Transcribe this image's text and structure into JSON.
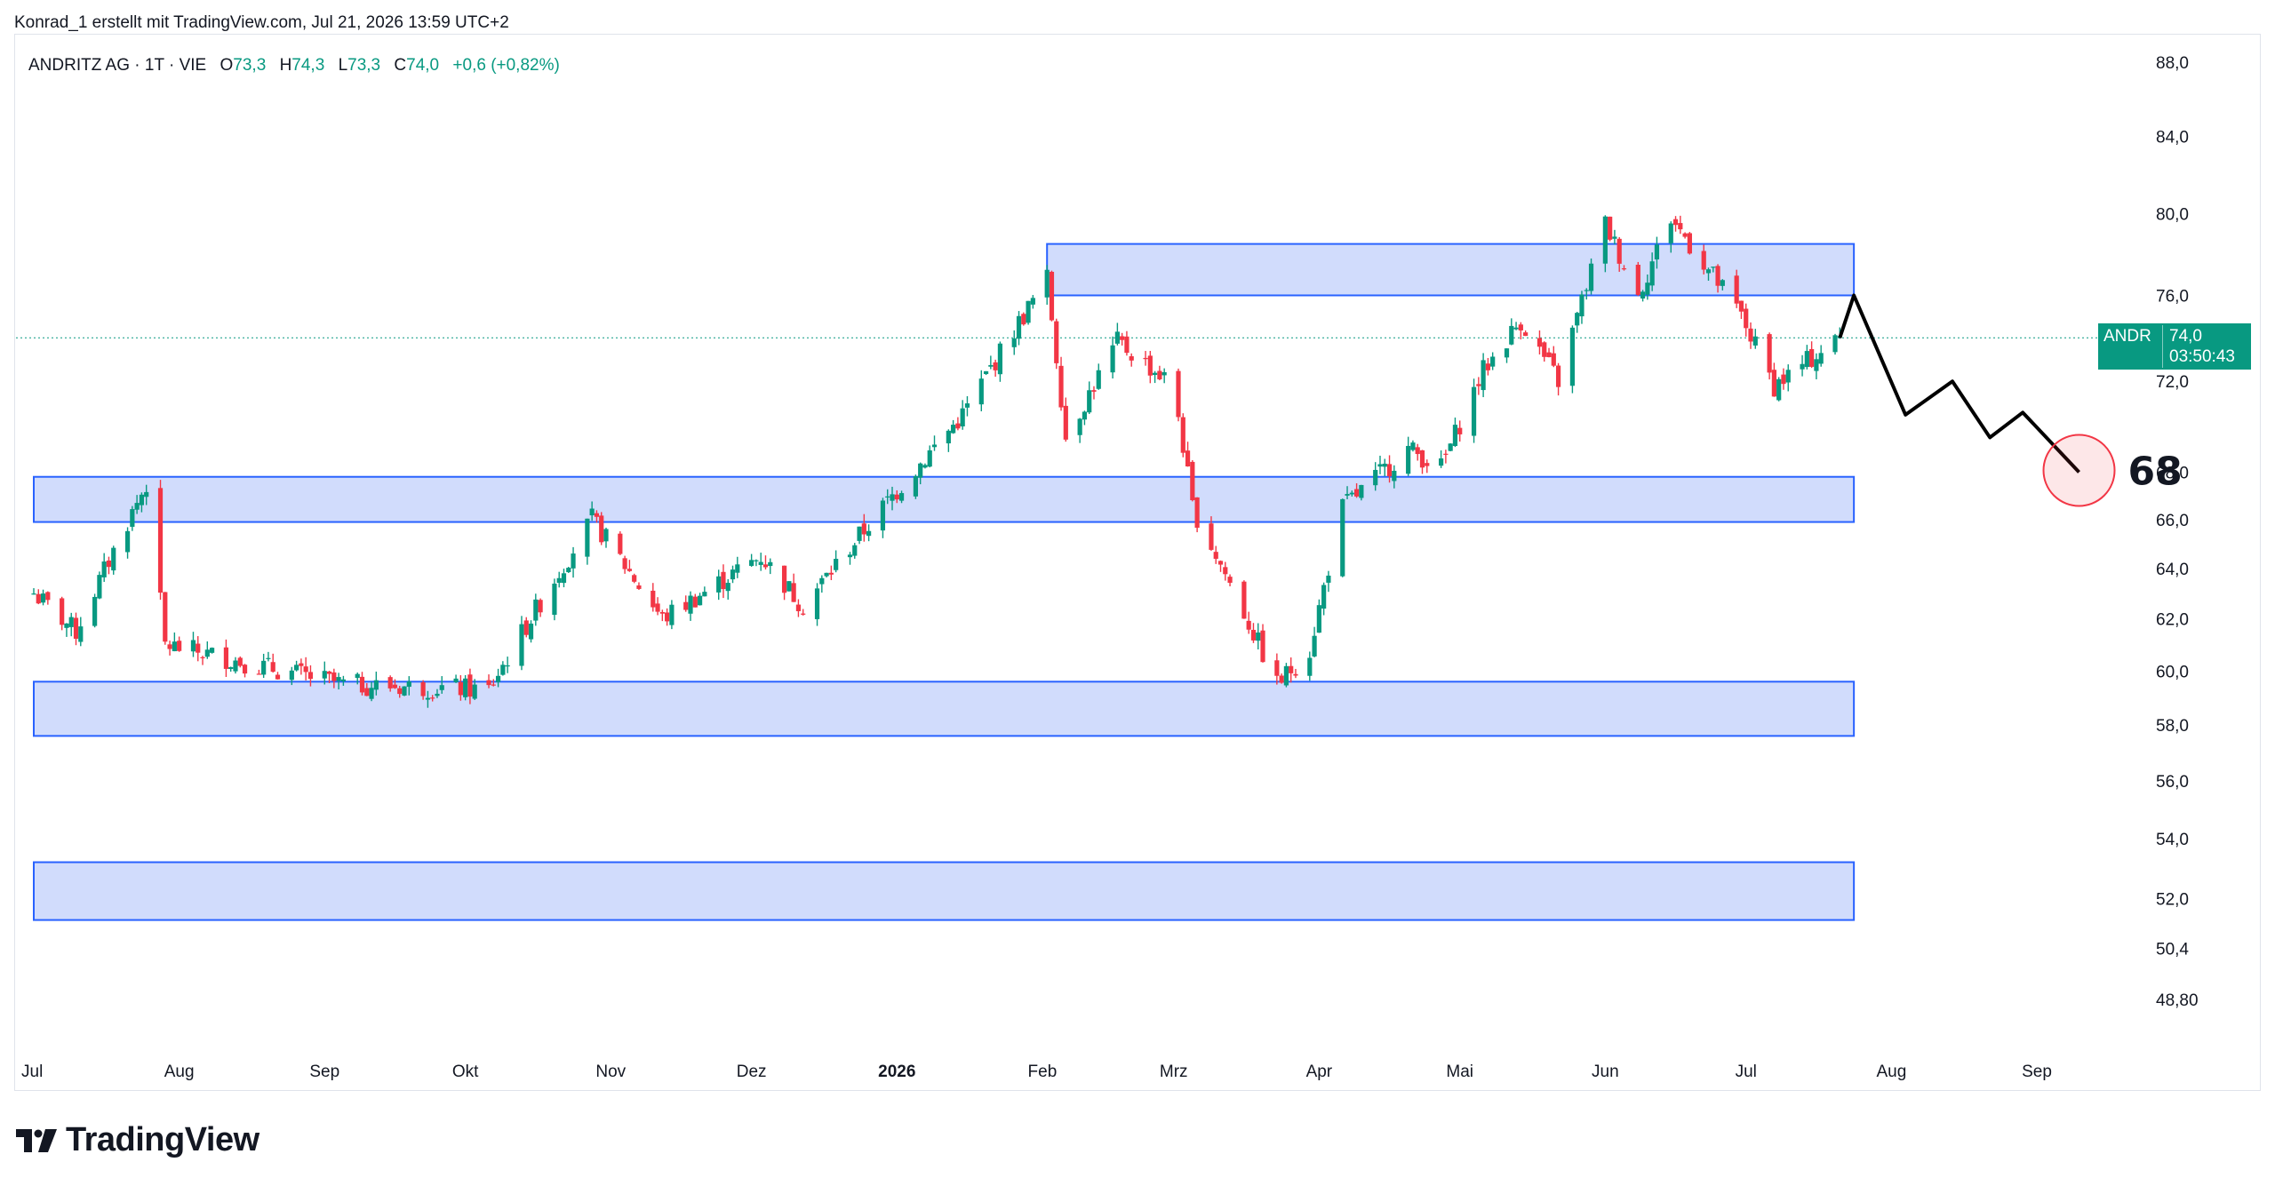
{
  "caption": "Konrad_1 erstellt mit TradingView.com, Jul 21, 2026 13:59 UTC+2",
  "legend": {
    "symbol": "ANDRITZ AG · 1T · VIE",
    "o_label": "O",
    "o_value": "73,3",
    "h_label": "H",
    "h_value": "74,3",
    "l_label": "L",
    "l_value": "73,3",
    "c_label": "C",
    "c_value": "74,0",
    "change": "+0,6 (+0,82%)"
  },
  "price_badge": {
    "ticker": "ANDR",
    "last": "74,0",
    "countdown": "03:50:43"
  },
  "projection_label": "68",
  "brand": "TradingView",
  "colors": {
    "up": "#089981",
    "down": "#f23645",
    "zone_fill": "#d1dcfc",
    "zone_stroke": "#2962ff",
    "projection": "#000000",
    "target_circle": "#f23645"
  },
  "chart_data": {
    "type": "candlestick",
    "instrument": "ANDRITZ AG",
    "interval": "1T",
    "exchange": "VIE",
    "price_axis": {
      "scale": "log",
      "ylim": [
        47.8,
        89.5
      ],
      "ticks": [
        88.0,
        84.0,
        80.0,
        76.0,
        72.0,
        68.0,
        66.0,
        64.0,
        62.0,
        60.0,
        58.0,
        56.0,
        54.0,
        52.0,
        50.4,
        48.8
      ],
      "tick_labels": [
        "88,0",
        "84,0",
        "80,0",
        "76,0",
        "72,0",
        "68,0",
        "66,0",
        "64,0",
        "62,0",
        "60,0",
        "58,0",
        "56,0",
        "54,0",
        "52,0",
        "50,4",
        "48,80"
      ]
    },
    "time_axis": {
      "labels": [
        "Jul",
        "Aug",
        "Sep",
        "Okt",
        "Nov",
        "Dez",
        "2026",
        "Feb",
        "Mrz",
        "Apr",
        "Mai",
        "Jun",
        "Jul",
        "Aug",
        "Sep"
      ],
      "dates": [
        "2025-07-01",
        "2025-08-01",
        "2025-09-01",
        "2025-10-01",
        "2025-11-01",
        "2025-12-01",
        "2026-01-01",
        "2026-02-01",
        "2026-03-01",
        "2026-04-01",
        "2026-05-01",
        "2026-06-01",
        "2026-07-01",
        "2026-08-01",
        "2026-09-01"
      ],
      "bold": [
        "2026"
      ]
    },
    "last_price": 74.0,
    "key_points": [
      {
        "date": "2025-07-01",
        "close": 63.0
      },
      {
        "date": "2025-07-10",
        "close": 61.5
      },
      {
        "date": "2025-07-25",
        "close": 67.5
      },
      {
        "date": "2025-07-29",
        "close": 61.0
      },
      {
        "date": "2025-09-05",
        "close": 59.5
      },
      {
        "date": "2025-10-06",
        "close": 59.3
      },
      {
        "date": "2025-10-28",
        "close": 66.0
      },
      {
        "date": "2025-11-12",
        "close": 62.0
      },
      {
        "date": "2025-12-03",
        "close": 64.5
      },
      {
        "date": "2025-12-12",
        "close": 62.5
      },
      {
        "date": "2025-12-29",
        "close": 66.5
      },
      {
        "date": "2026-01-15",
        "close": 70.5
      },
      {
        "date": "2026-02-02",
        "close": 76.8
      },
      {
        "date": "2026-02-06",
        "close": 69.5
      },
      {
        "date": "2026-02-17",
        "close": 73.8
      },
      {
        "date": "2026-03-01",
        "close": 71.8
      },
      {
        "date": "2026-03-05",
        "close": 66.5
      },
      {
        "date": "2026-03-23",
        "close": 59.5
      },
      {
        "date": "2026-03-30",
        "close": 60.8
      },
      {
        "date": "2026-04-06",
        "close": 66.5
      },
      {
        "date": "2026-04-20",
        "close": 69.0
      },
      {
        "date": "2026-04-27",
        "close": 68.2
      },
      {
        "date": "2026-05-06",
        "close": 72.5
      },
      {
        "date": "2026-05-14",
        "close": 74.8
      },
      {
        "date": "2026-05-22",
        "close": 72.0
      },
      {
        "date": "2026-06-01",
        "close": 79.5
      },
      {
        "date": "2026-06-08",
        "close": 76.0
      },
      {
        "date": "2026-06-15",
        "close": 79.8
      },
      {
        "date": "2026-06-30",
        "close": 75.0
      },
      {
        "date": "2026-07-07",
        "close": 71.8
      },
      {
        "date": "2026-07-21",
        "close": 74.0
      }
    ],
    "zones": [
      {
        "from": "2026-02-02",
        "to": "2026-07-24",
        "low": 76.0,
        "high": 78.5
      },
      {
        "from": "2025-07-01",
        "to": "2026-07-24",
        "low": 65.9,
        "high": 67.8
      },
      {
        "from": "2025-07-01",
        "to": "2026-07-24",
        "low": 57.6,
        "high": 59.6
      },
      {
        "from": "2025-07-01",
        "to": "2026-07-24",
        "low": 51.3,
        "high": 53.2
      }
    ],
    "projection": [
      {
        "date": "2026-07-21",
        "value": 74.0
      },
      {
        "date": "2026-07-24",
        "value": 76.0
      },
      {
        "date": "2026-08-04",
        "value": 70.5
      },
      {
        "date": "2026-08-14",
        "value": 72.0
      },
      {
        "date": "2026-08-22",
        "value": 69.5
      },
      {
        "date": "2026-08-29",
        "value": 70.6
      },
      {
        "date": "2026-09-10",
        "value": 68.0
      }
    ],
    "target": 68.0
  }
}
